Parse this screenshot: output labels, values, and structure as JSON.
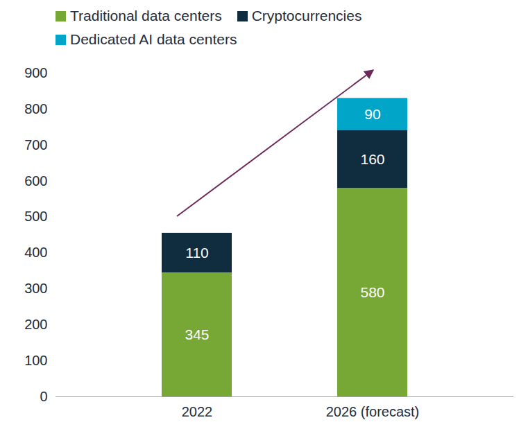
{
  "chart_data": {
    "type": "bar",
    "stacked": true,
    "data_labels": true,
    "grid": false,
    "legend": "top-left",
    "categories": [
      "2022",
      "2026 (forecast)"
    ],
    "series": [
      {
        "name": "Traditional data centers",
        "color": "#77a836",
        "values": [
          345,
          580
        ]
      },
      {
        "name": "Cryptocurrencies",
        "color": "#0f2d3f",
        "values": [
          110,
          160
        ]
      },
      {
        "name": "Dedicated AI data centers",
        "color": "#00a5c8",
        "values": [
          null,
          90
        ]
      }
    ],
    "ylim": [
      0,
      900
    ],
    "yticks": [
      0,
      100,
      200,
      300,
      400,
      500,
      600,
      700,
      800,
      900
    ]
  }
}
